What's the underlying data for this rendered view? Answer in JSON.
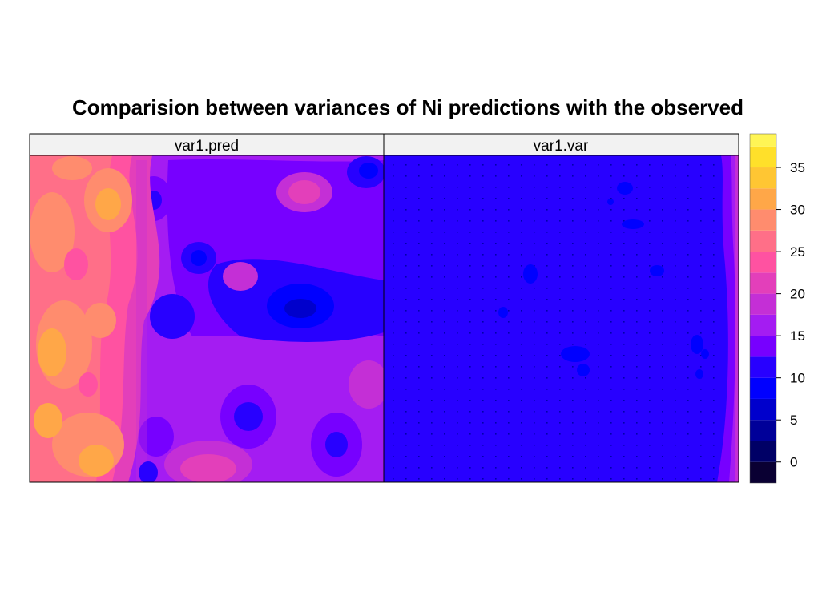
{
  "chart_data": {
    "type": "heatmap",
    "title": "Comparision between variances of Ni predictions with the observed",
    "panels": [
      {
        "name": "var1.pred"
      },
      {
        "name": "var1.var"
      }
    ],
    "colorbar": {
      "range": [
        -2.5,
        39
      ],
      "breaks": [
        -2.5,
        0,
        2.5,
        5,
        7.5,
        10,
        12.5,
        15,
        17.5,
        20,
        22.5,
        25,
        27.5,
        30,
        32.5,
        35,
        37.5,
        39
      ],
      "ticks": [
        0,
        5,
        10,
        15,
        20,
        25,
        30,
        35
      ],
      "tick_labels": [
        "0",
        "5",
        "10",
        "15",
        "20",
        "25",
        "30",
        "35"
      ],
      "colors": [
        "#0A0033",
        "#000066",
        "#000099",
        "#0000CC",
        "#0000FF",
        "#2800FF",
        "#7700FF",
        "#A41CF2",
        "#C42FD6",
        "#E33FBA",
        "#FF52A1",
        "#FF6F88",
        "#FF8C6E",
        "#FFA748",
        "#FFC633",
        "#FFE02A",
        "#FFF555"
      ]
    }
  }
}
